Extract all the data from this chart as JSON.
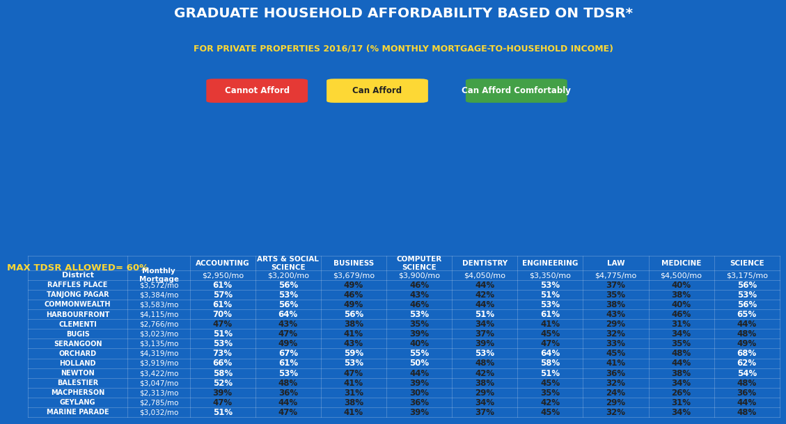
{
  "title": "GRADUATE HOUSEHOLD AFFORDABILITY BASED ON TDSR*",
  "subtitle": "FOR PRIVATE PROPERTIES 2016/17 (% MONTHLY MORTGAGE-TO-HOUSEHOLD INCOME)",
  "bg_color": "#1565C0",
  "legend": [
    {
      "label": "Cannot Afford",
      "color": "#E53935",
      "text_color": "white"
    },
    {
      "label": "Can Afford",
      "color": "#FDD835",
      "text_color": "#222222"
    },
    {
      "label": "Can Afford Comfortably",
      "color": "#43A047",
      "text_color": "white"
    }
  ],
  "max_tdsr_label": "MAX TDSR ALLOWED= 60%",
  "col_headers": [
    "ACCOUNTING",
    "ARTS & SOCIAL\nSCIENCE",
    "BUSINESS",
    "COMPUTER\nSCIENCE",
    "DENTISTRY",
    "ENGINEERING",
    "LAW",
    "MEDICINE",
    "SCIENCE"
  ],
  "col_salaries": [
    "$2,950/mo",
    "$3,200/mo",
    "$3,679/mo",
    "$3,900/mo",
    "$4,050/mo",
    "$3,350/mo",
    "$4,775/mo",
    "$4,500/mo",
    "$3,175/mo"
  ],
  "districts": [
    "RAFFLES PLACE",
    "TANJONG PAGAR",
    "COMMONWEALTH",
    "HARBOURFRONT",
    "CLEMENTI",
    "BUGIS",
    "SERANGOON",
    "ORCHARD",
    "HOLLAND",
    "NEWTON",
    "BALESTIER",
    "MACPHERSON",
    "GEYLANG",
    "MARINE PARADE"
  ],
  "mortgages": [
    "$3,572/mo",
    "$3,384/mo",
    "$3,583/mo",
    "$4,115/mo",
    "$2,766/mo",
    "$3,023/mo",
    "$3,135/mo",
    "$4,319/mo",
    "$3,919/mo",
    "$3,422/mo",
    "$3,047/mo",
    "$2,313/mo",
    "$2,785/mo",
    "$3,032/mo"
  ],
  "data": [
    [
      61,
      56,
      49,
      46,
      44,
      53,
      37,
      40,
      56
    ],
    [
      57,
      53,
      46,
      43,
      42,
      51,
      35,
      38,
      53
    ],
    [
      61,
      56,
      49,
      46,
      44,
      53,
      38,
      40,
      56
    ],
    [
      70,
      64,
      56,
      53,
      51,
      61,
      43,
      46,
      65
    ],
    [
      47,
      43,
      38,
      35,
      34,
      41,
      29,
      31,
      44
    ],
    [
      51,
      47,
      41,
      39,
      37,
      45,
      32,
      34,
      48
    ],
    [
      53,
      49,
      43,
      40,
      39,
      47,
      33,
      35,
      49
    ],
    [
      73,
      67,
      59,
      55,
      53,
      64,
      45,
      48,
      68
    ],
    [
      66,
      61,
      53,
      50,
      48,
      58,
      41,
      44,
      62
    ],
    [
      58,
      53,
      47,
      44,
      42,
      51,
      36,
      38,
      54
    ],
    [
      52,
      48,
      41,
      39,
      38,
      45,
      32,
      34,
      48
    ],
    [
      39,
      36,
      31,
      30,
      29,
      35,
      24,
      26,
      36
    ],
    [
      47,
      44,
      38,
      36,
      34,
      42,
      29,
      31,
      44
    ],
    [
      51,
      47,
      41,
      39,
      37,
      45,
      32,
      34,
      48
    ]
  ],
  "header_bg": "#1a1a1a",
  "subheader_bg": "#2d2d2d",
  "row_bg_even": "#1e1e1e",
  "row_bg_odd": "#282828"
}
